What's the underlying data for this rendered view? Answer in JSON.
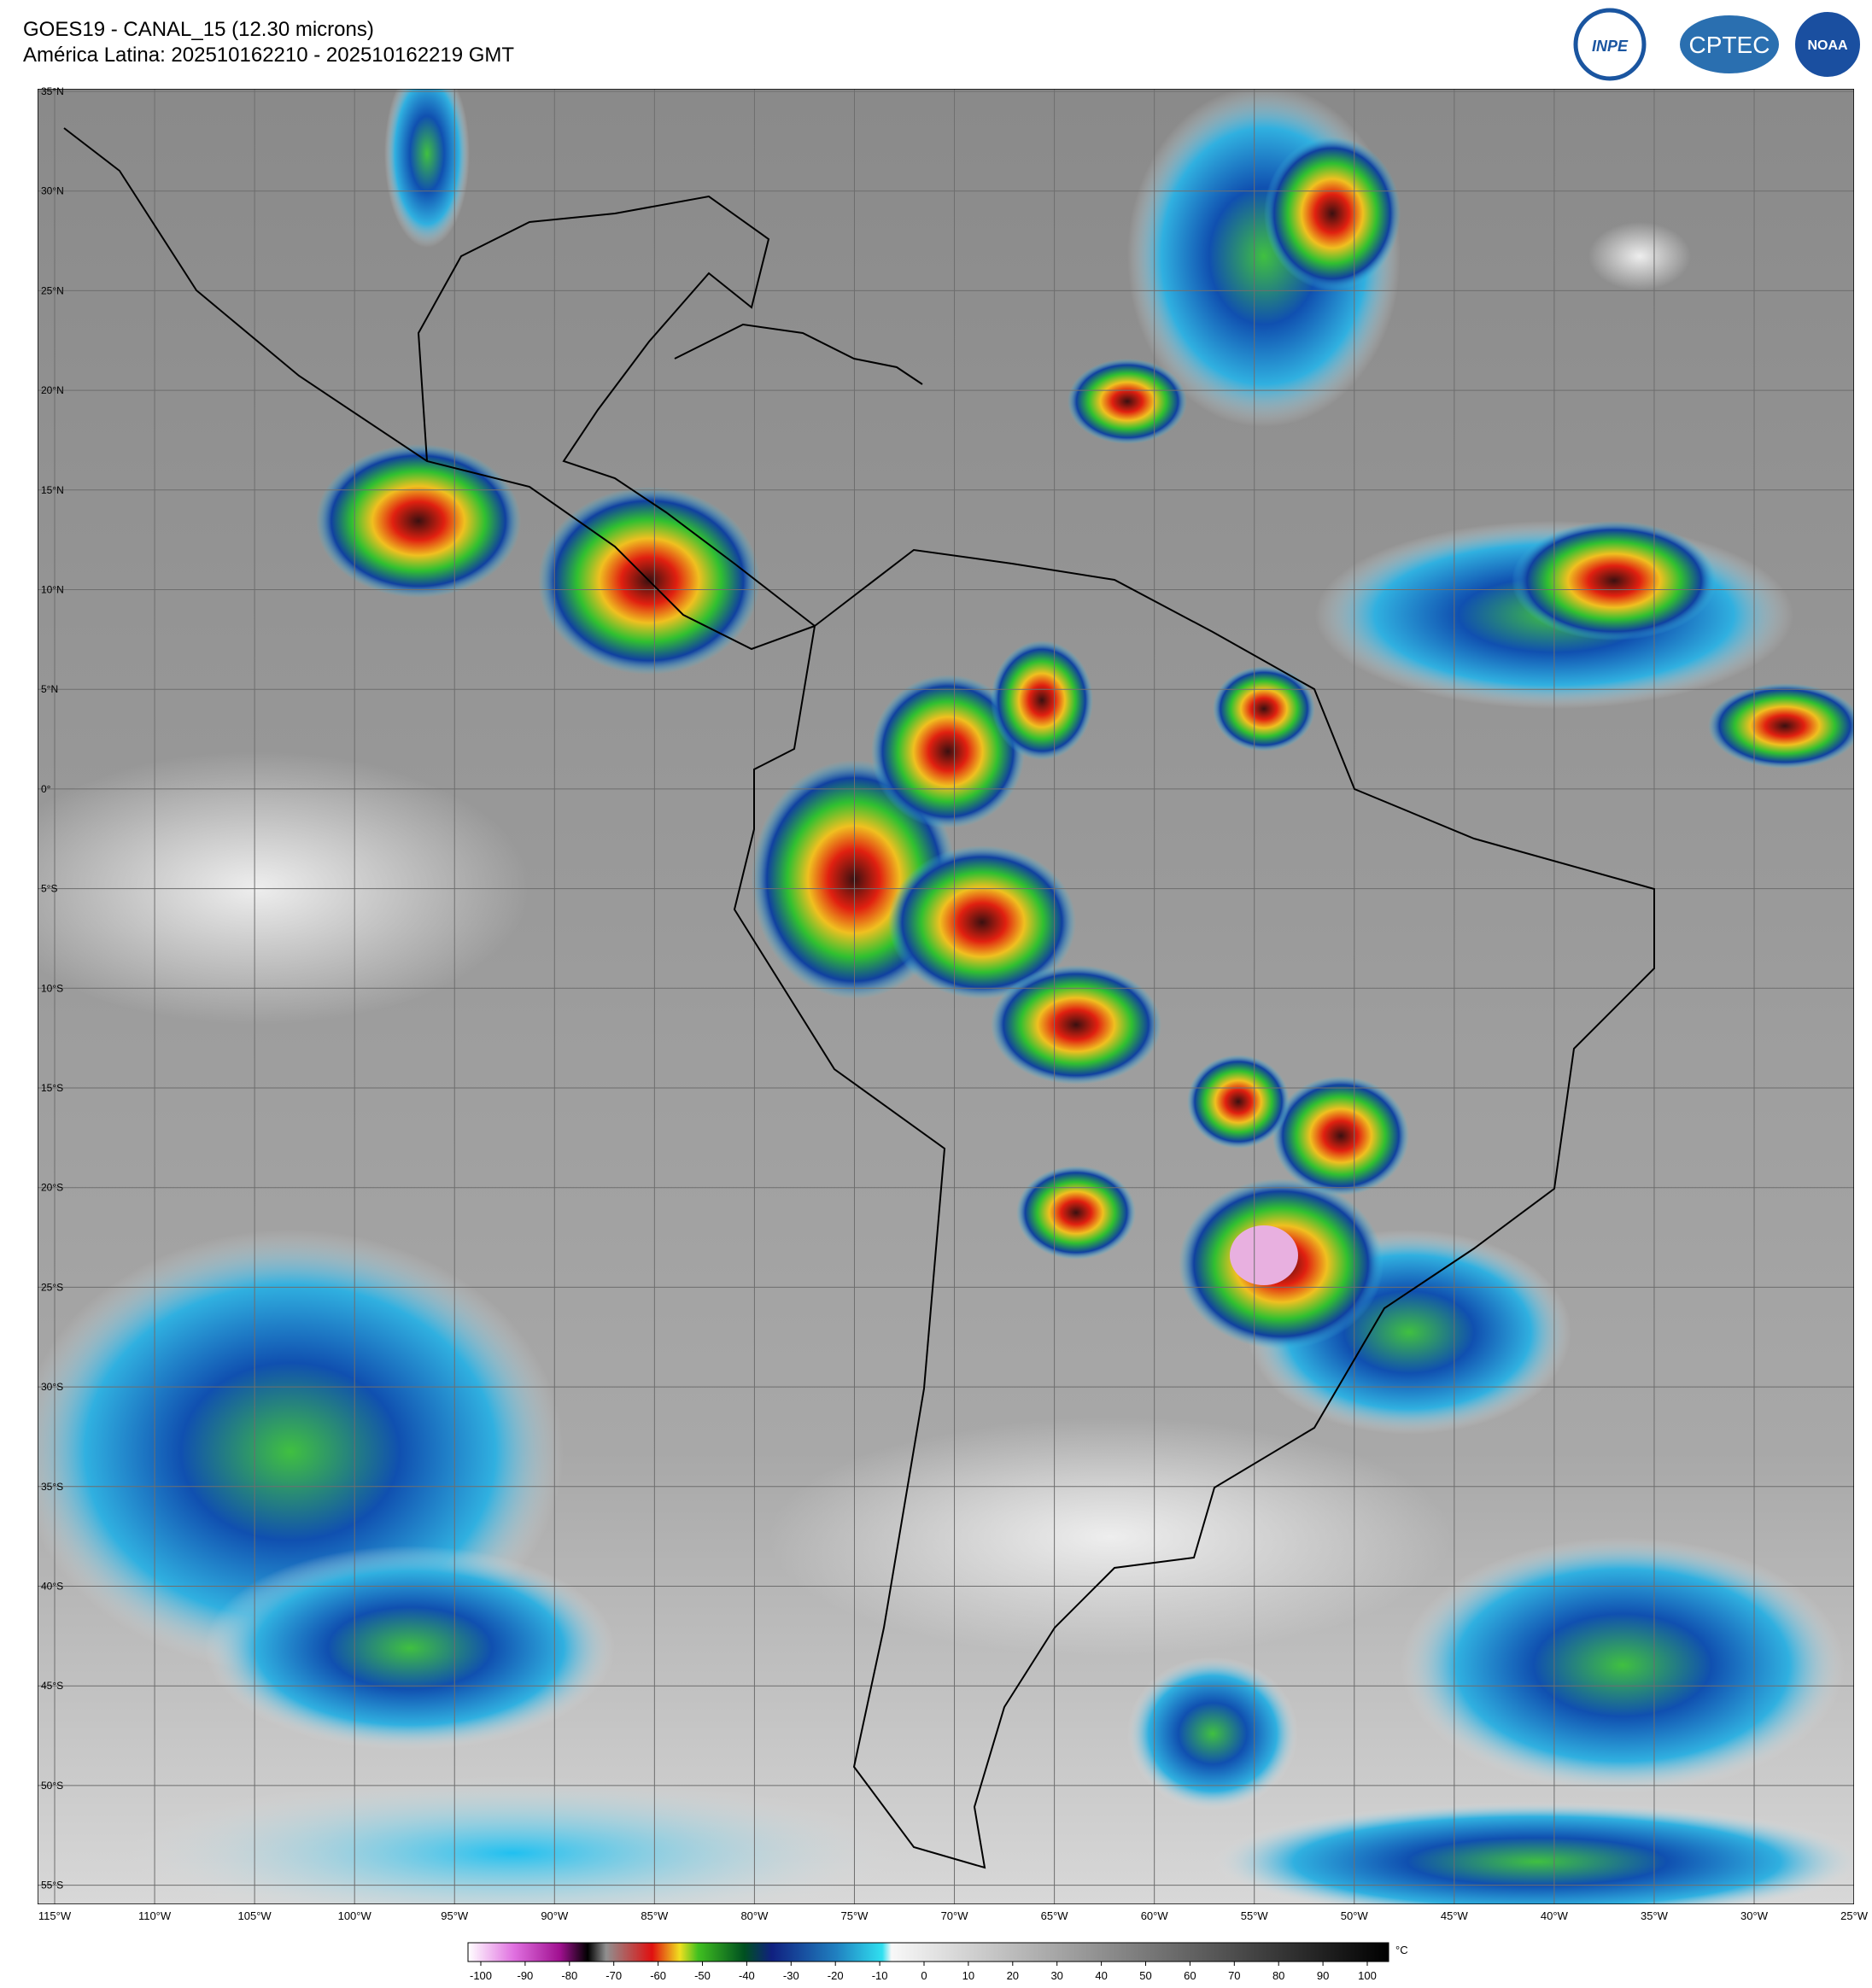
{
  "header": {
    "title": "GOES19 - CANAL_15 (12.30 microns)",
    "subtitle": "América Latina: 202510162210 - 202510162219 GMT"
  },
  "logos": [
    "INPE",
    "CPTEC",
    "NOAA"
  ],
  "map": {
    "lat_labels": [
      "35°N",
      "30°N",
      "25°N",
      "20°N",
      "15°N",
      "10°N",
      "5°N",
      "0°",
      "5°S",
      "10°S",
      "15°S",
      "20°S",
      "25°S",
      "30°S",
      "35°S",
      "40°S",
      "45°S",
      "50°S",
      "55°S"
    ],
    "lon_labels": [
      "115°W",
      "110°W",
      "105°W",
      "100°W",
      "95°W",
      "90°W",
      "85°W",
      "80°W",
      "75°W",
      "70°W",
      "65°W",
      "60°W",
      "55°W",
      "50°W",
      "45°W",
      "40°W",
      "35°W",
      "30°W",
      "25°W"
    ]
  },
  "colorbar": {
    "ticks": [
      -100,
      -90,
      -80,
      -70,
      -60,
      -50,
      -40,
      -30,
      -20,
      -10,
      0,
      10,
      20,
      30,
      40,
      50,
      60,
      70,
      80,
      90,
      100
    ],
    "unit": "°C"
  }
}
